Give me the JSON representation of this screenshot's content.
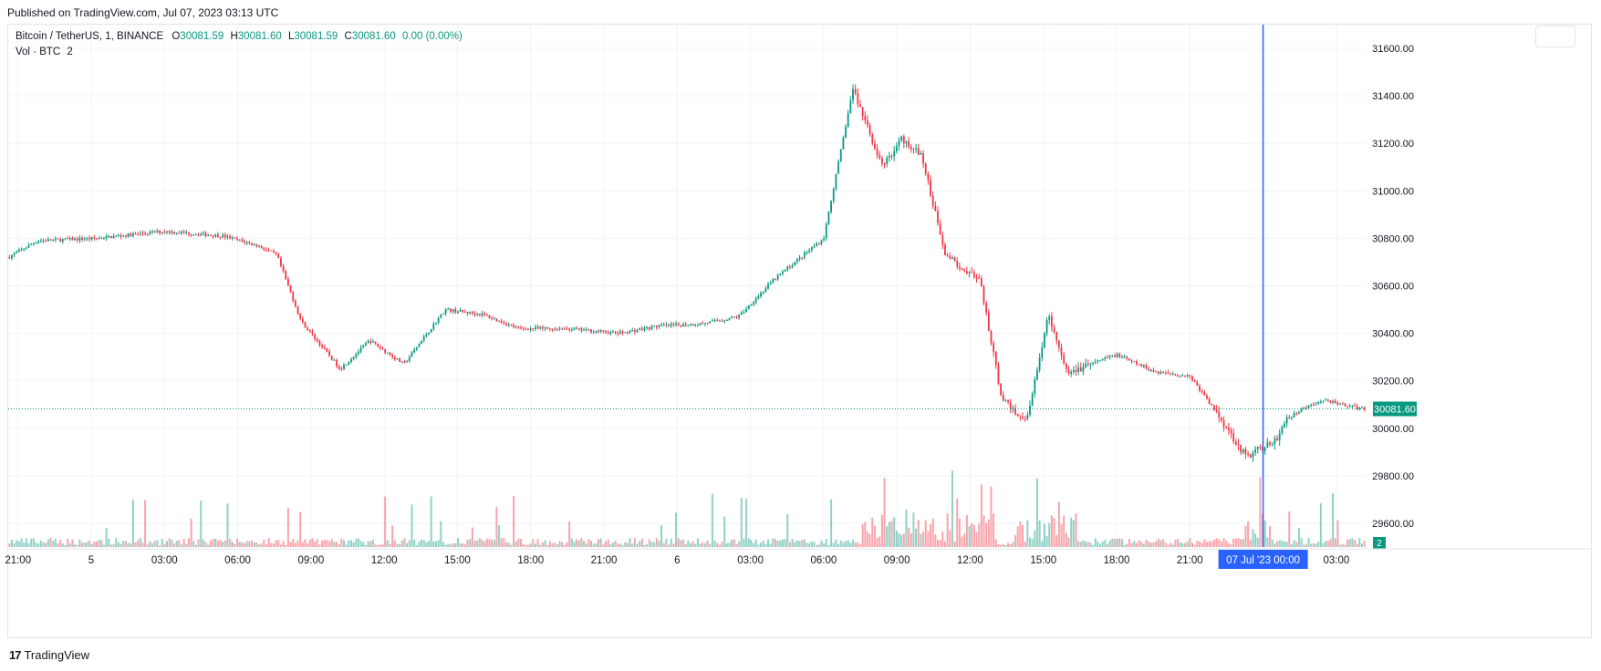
{
  "header": {
    "published": "Published on TradingView.com, Jul 07, 2023 03:13 UTC"
  },
  "legend": {
    "symbol": "Bitcoin / TetherUS, 1, BINANCE",
    "o_label": "O",
    "o_value": "30081.59",
    "h_label": "H",
    "h_value": "30081.60",
    "l_label": "L",
    "l_value": "30081.59",
    "c_label": "C",
    "c_value": "30081.60",
    "change": "0.00 (0.00%)",
    "vol_label": "Vol · BTC",
    "vol_value": "2"
  },
  "footer": {
    "brand": "TradingView",
    "logo_text": "17"
  },
  "colors": {
    "up": "#089981",
    "down": "#f23645",
    "crosshair": "#2962ff",
    "grid": "#f0f3fa"
  },
  "chart_data": {
    "type": "candlestick",
    "title": "Bitcoin / TetherUS, 1, BINANCE",
    "ylim": [
      29500,
      31700
    ],
    "y_ticks": [
      "31600.00",
      "31400.00",
      "31200.00",
      "31000.00",
      "30800.00",
      "30600.00",
      "30400.00",
      "30200.00",
      "30000.00",
      "29800.00",
      "29600.00"
    ],
    "y_tick_values": [
      31600,
      31400,
      31200,
      31000,
      30800,
      30600,
      30400,
      30200,
      30000,
      29800,
      29600
    ],
    "x_ticks": [
      "21:00",
      "5",
      "03:00",
      "06:00",
      "09:00",
      "12:00",
      "15:00",
      "18:00",
      "21:00",
      "6",
      "03:00",
      "06:00",
      "09:00",
      "12:00",
      "15:00",
      "18:00",
      "21:00",
      "00:00",
      "03:00"
    ],
    "x_tick_hours": [
      0,
      3,
      6,
      9,
      12,
      15,
      18,
      21,
      24,
      27,
      30,
      33,
      36,
      39,
      42,
      45,
      48,
      51,
      54
    ],
    "x_range_hours": [
      -0.4,
      55.2
    ],
    "price_anchors": {
      "hours": [
        -0.4,
        0.8,
        3.2,
        6.0,
        8.4,
        9.8,
        10.6,
        11.6,
        13.2,
        14.4,
        15.8,
        17.5,
        19.0,
        20.5,
        22.5,
        24.6,
        26.2,
        28.0,
        29.5,
        31.0,
        33.0,
        34.2,
        35.4,
        36.2,
        37.0,
        38.0,
        39.4,
        40.3,
        41.3,
        42.2,
        43.0,
        43.9,
        45.0,
        46.5,
        48.0,
        49.2,
        50.3,
        51.5,
        52.0,
        52.6,
        53.5,
        55.0
      ],
      "prices": [
        30720,
        30790,
        30800,
        30830,
        30810,
        30770,
        30730,
        30450,
        30250,
        30370,
        30270,
        30500,
        30480,
        30420,
        30420,
        30400,
        30430,
        30440,
        30470,
        30630,
        30800,
        31430,
        31100,
        31220,
        31150,
        30730,
        30620,
        30120,
        30030,
        30480,
        30220,
        30270,
        30310,
        30240,
        30220,
        30050,
        29880,
        29950,
        30040,
        30080,
        30120,
        30082
      ]
    },
    "last_price": "30081.60",
    "last_price_value": 30081.6,
    "volume": {
      "series": "Vol · BTC",
      "last": "2"
    },
    "crosshair": {
      "date_label": "07 Jul '23",
      "time_label": "00:00",
      "hour": 51.0
    }
  }
}
